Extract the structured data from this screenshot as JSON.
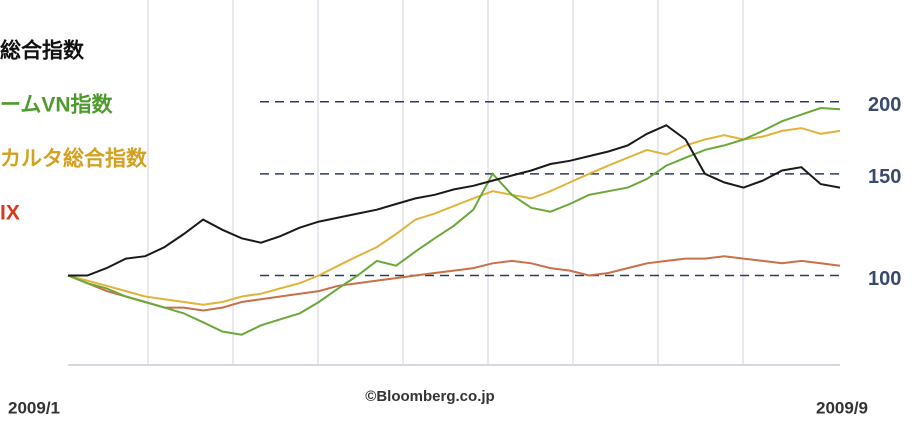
{
  "chart_data": {
    "type": "line",
    "log_scale": true,
    "ylim": [
      70,
      300
    ],
    "yticks": [
      100,
      150,
      200
    ],
    "x_labels": [
      "2009/1",
      "2009/9"
    ],
    "source": "©Bloomberg.co.jp",
    "series": [
      {
        "name": "総合指数",
        "color": "#1a1a1a",
        "label_color": "#111111",
        "values": [
          100,
          100,
          103,
          107,
          108,
          112,
          118,
          125,
          120,
          116,
          114,
          117,
          121,
          124,
          126,
          128,
          130,
          133,
          136,
          138,
          141,
          143,
          146,
          149,
          152,
          156,
          158,
          161,
          164,
          168,
          176,
          182,
          172,
          150,
          145,
          142,
          146,
          152,
          154,
          144,
          142
        ]
      },
      {
        "name": "ームVN指数",
        "color": "#6aa83a",
        "label_color": "#4e9a2e",
        "values": [
          100,
          97,
          95,
          92,
          90,
          88,
          86,
          83,
          80,
          79,
          82,
          84,
          86,
          90,
          95,
          100,
          106,
          104,
          110,
          116,
          122,
          130,
          150,
          138,
          131,
          129,
          133,
          138,
          140,
          142,
          147,
          155,
          160,
          165,
          168,
          172,
          178,
          185,
          190,
          195,
          194
        ]
      },
      {
        "name": "カルタ総合指数",
        "color": "#e0b43a",
        "label_color": "#d4a020",
        "values": [
          100,
          98,
          96,
          94,
          92,
          91,
          90,
          89,
          90,
          92,
          93,
          95,
          97,
          100,
          104,
          108,
          112,
          118,
          125,
          128,
          132,
          136,
          140,
          138,
          136,
          140,
          145,
          150,
          155,
          160,
          165,
          162,
          168,
          172,
          175,
          172,
          174,
          178,
          180,
          176,
          178
        ]
      },
      {
        "name": "IX",
        "color": "#c8704a",
        "label_color": "#d83a20",
        "values": [
          100,
          97,
          94,
          92,
          90,
          88,
          88,
          87,
          88,
          90,
          91,
          92,
          93,
          94,
          96,
          97,
          98,
          99,
          100,
          101,
          102,
          103,
          105,
          106,
          105,
          103,
          102,
          100,
          101,
          103,
          105,
          106,
          107,
          107,
          108,
          107,
          106,
          105,
          106,
          105,
          104
        ]
      }
    ]
  }
}
